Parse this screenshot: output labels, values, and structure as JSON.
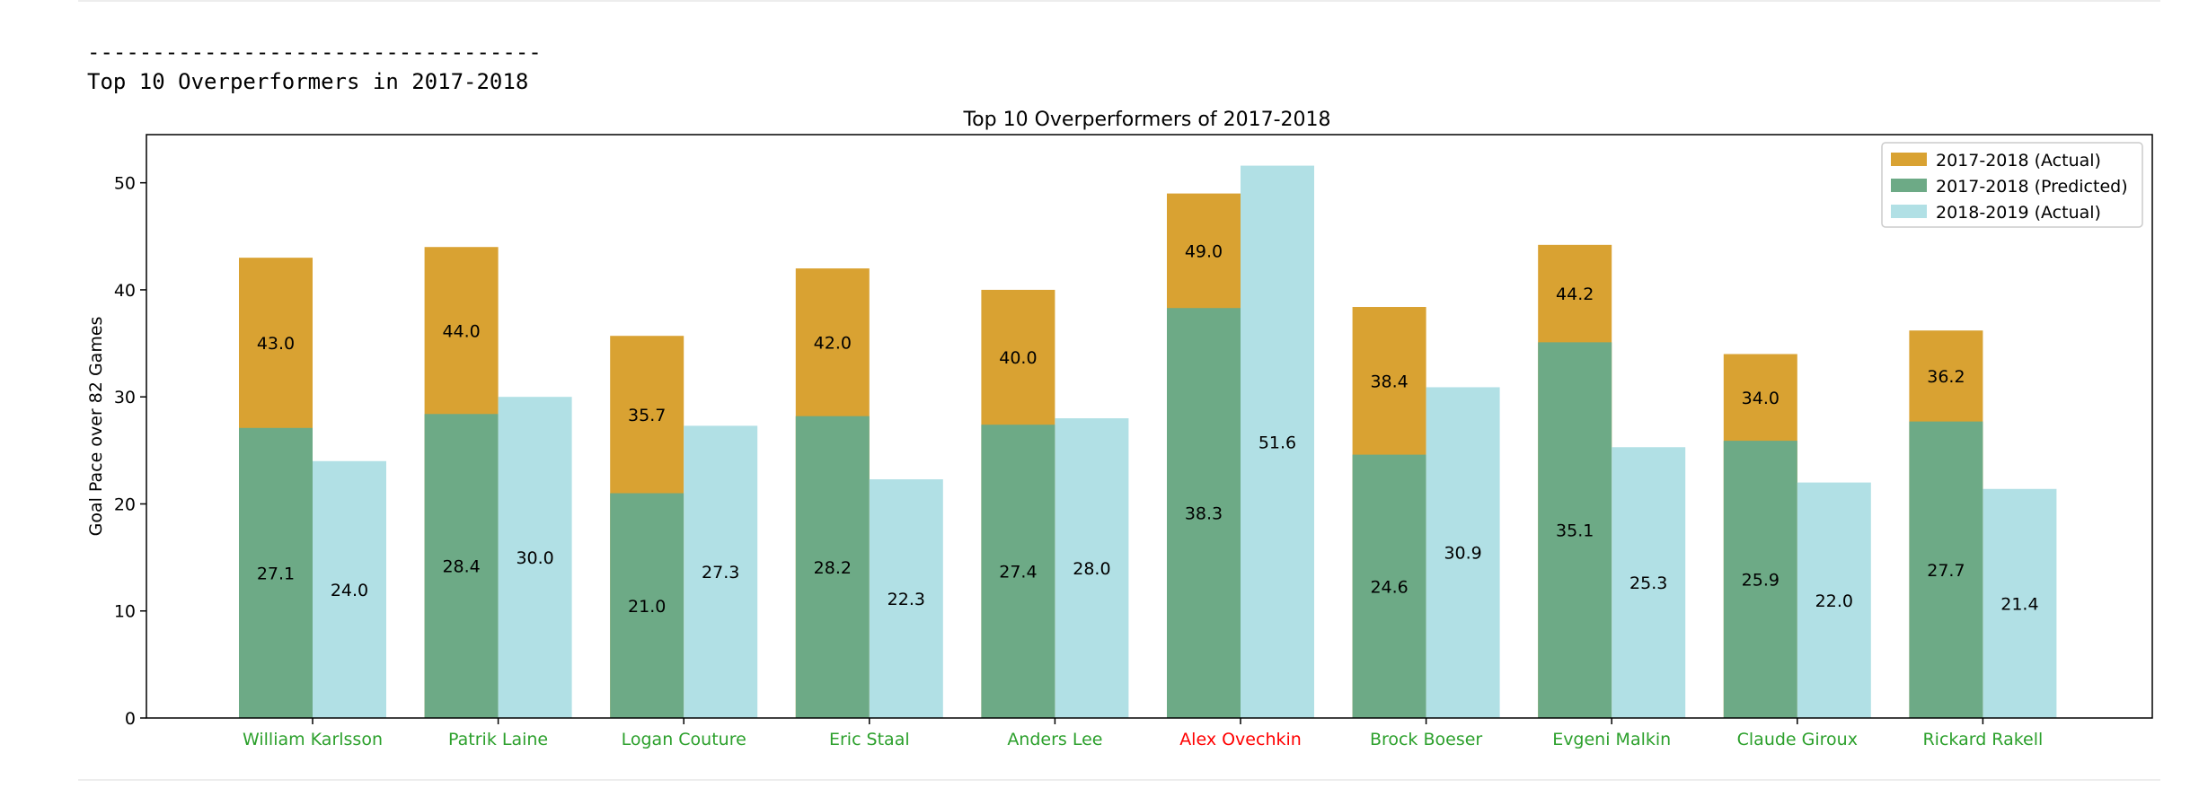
{
  "console": {
    "separator": "-----------------------------------",
    "heading": "Top 10 Overperformers in 2017-2018"
  },
  "chart_data": {
    "type": "bar",
    "title": "Top 10 Overperformers of 2017-2018",
    "xlabel": "",
    "ylabel": "Goal Pace over 82 Games",
    "ylim": [
      0,
      54.5
    ],
    "yticks": [
      0,
      10,
      20,
      30,
      40,
      50
    ],
    "grid": false,
    "legend_position": "top-right",
    "categories": [
      "William Karlsson",
      "Patrik Laine",
      "Logan Couture",
      "Eric Staal",
      "Anders Lee",
      "Alex Ovechkin",
      "Brock Boeser",
      "Evgeni Malkin",
      "Claude Giroux",
      "Rickard Rakell"
    ],
    "category_colors": [
      "#2ca02c",
      "#2ca02c",
      "#2ca02c",
      "#2ca02c",
      "#2ca02c",
      "#ff0000",
      "#2ca02c",
      "#2ca02c",
      "#2ca02c",
      "#2ca02c"
    ],
    "series": [
      {
        "name": "2017-2018 (Actual)",
        "color": "#d9a232",
        "values": [
          43.0,
          44.0,
          35.7,
          42.0,
          40.0,
          49.0,
          38.4,
          44.2,
          34.0,
          36.2
        ],
        "labels": [
          "43.0",
          "44.0",
          "35.7",
          "42.0",
          "40.0",
          "49.0",
          "38.4",
          "44.2",
          "34.0",
          "36.2"
        ]
      },
      {
        "name": "2017-2018 (Predicted)",
        "color": "#6daa86",
        "values": [
          27.1,
          28.4,
          21.0,
          28.2,
          27.4,
          38.3,
          24.6,
          35.1,
          25.9,
          27.7
        ],
        "labels": [
          "27.1",
          "28.4",
          "21.0",
          "28.2",
          "27.4",
          "38.3",
          "24.6",
          "35.1",
          "25.9",
          "27.7"
        ]
      },
      {
        "name": "2018-2019 (Actual)",
        "color": "#b1e0e5",
        "values": [
          24.0,
          30.0,
          27.3,
          22.3,
          28.0,
          51.6,
          30.9,
          25.3,
          22.0,
          21.4
        ],
        "labels": [
          "24.0",
          "30.0",
          "27.3",
          "22.3",
          "28.0",
          "51.6",
          "30.9",
          "25.3",
          "22.0",
          "21.4"
        ]
      }
    ]
  }
}
